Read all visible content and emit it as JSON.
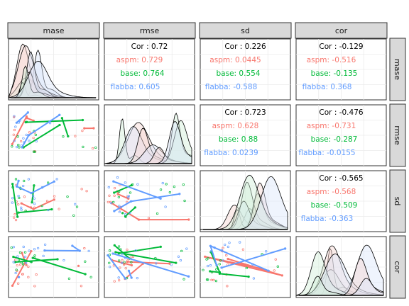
{
  "chart_data": {
    "type": "scatter",
    "variables": [
      "mase",
      "rmse",
      "sd",
      "cor"
    ],
    "groups": [
      {
        "name": "aspm",
        "color": "#F8766D"
      },
      {
        "name": "base",
        "color": "#00BA38"
      },
      {
        "name": "flabba",
        "color": "#619CFF"
      }
    ],
    "correlations": [
      {
        "row": "mase",
        "col": "rmse",
        "overall": "0.72",
        "aspm": "0.729",
        "base": "0.764",
        "flabba": "0.605"
      },
      {
        "row": "mase",
        "col": "sd",
        "overall": "0.226",
        "aspm": "0.0445",
        "base": "0.554",
        "flabba": "-0.588"
      },
      {
        "row": "mase",
        "col": "cor",
        "overall": "-0.129",
        "aspm": "-0.516",
        "base": "-0.135",
        "flabba": "0.368"
      },
      {
        "row": "rmse",
        "col": "sd",
        "overall": "0.723",
        "aspm": "0.628",
        "base": "0.88",
        "flabba": "0.0239"
      },
      {
        "row": "rmse",
        "col": "cor",
        "overall": "-0.476",
        "aspm": "-0.731",
        "base": "-0.287",
        "flabba": "-0.0155"
      },
      {
        "row": "sd",
        "col": "cor",
        "overall": "-0.565",
        "aspm": "-0.568",
        "base": "-0.509",
        "flabba": "-0.363"
      }
    ],
    "corr_prefix": "Cor : ",
    "grid": true,
    "legend": "none"
  }
}
